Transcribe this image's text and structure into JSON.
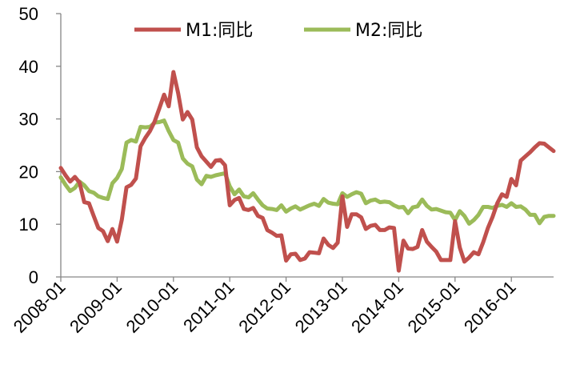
{
  "chart_data": {
    "type": "line",
    "title": "",
    "xlabel": "",
    "ylabel": "",
    "ylim": [
      0,
      50
    ],
    "yticks": [
      0,
      10,
      20,
      30,
      40,
      50
    ],
    "xticks": [
      "2008-01",
      "2009-01",
      "2010-01",
      "2011-01",
      "2012-01",
      "2013-01",
      "2014-01",
      "2015-01",
      "2016-01"
    ],
    "x_start": "2008-01",
    "x_end": "2016-10",
    "grid": false,
    "legend_position": "top",
    "series": [
      {
        "name": "M1:同比",
        "color": "#C0504D",
        "values": [
          20.7,
          19.3,
          18.1,
          19.0,
          17.9,
          14.2,
          14.0,
          11.6,
          9.3,
          8.7,
          6.8,
          9.1,
          6.7,
          10.9,
          17.0,
          17.5,
          18.7,
          24.8,
          26.4,
          27.7,
          29.5,
          32.0,
          34.6,
          32.4,
          38.9,
          34.9,
          29.9,
          31.3,
          29.9,
          24.6,
          22.9,
          21.9,
          20.9,
          22.1,
          22.2,
          21.2,
          13.6,
          14.6,
          15.0,
          12.9,
          12.7,
          13.1,
          11.6,
          11.2,
          8.9,
          8.4,
          7.8,
          7.9,
          3.1,
          4.3,
          4.4,
          3.2,
          3.5,
          4.7,
          4.6,
          4.5,
          7.3,
          6.1,
          5.5,
          6.5,
          15.3,
          9.5,
          11.9,
          11.9,
          11.3,
          9.1,
          9.7,
          9.9,
          8.9,
          8.9,
          9.4,
          9.3,
          1.2,
          6.9,
          5.4,
          5.3,
          5.7,
          8.9,
          6.7,
          5.7,
          4.8,
          3.2,
          3.2,
          3.2,
          10.6,
          5.6,
          2.9,
          3.7,
          4.7,
          4.3,
          6.6,
          9.3,
          11.4,
          14.0,
          15.7,
          15.2,
          18.6,
          17.4,
          22.1,
          22.9,
          23.7,
          24.6,
          25.4,
          25.3,
          24.6,
          23.9
        ]
      },
      {
        "name": "M2:同比",
        "color": "#9BBB59",
        "values": [
          18.9,
          17.5,
          16.3,
          16.9,
          18.1,
          17.4,
          16.3,
          16.0,
          15.3,
          15.0,
          14.8,
          17.8,
          18.8,
          20.5,
          25.5,
          26.0,
          25.7,
          28.5,
          28.4,
          28.5,
          29.3,
          29.4,
          29.7,
          27.7,
          26.0,
          25.5,
          22.5,
          21.5,
          21.0,
          18.5,
          17.6,
          19.2,
          19.0,
          19.3,
          19.5,
          19.7,
          17.2,
          15.7,
          16.6,
          15.3,
          15.1,
          15.9,
          14.7,
          13.6,
          13.0,
          12.9,
          12.7,
          13.6,
          12.4,
          13.0,
          13.4,
          12.8,
          13.2,
          13.6,
          13.9,
          13.5,
          14.8,
          14.1,
          13.9,
          13.8,
          15.9,
          15.2,
          15.7,
          16.1,
          15.8,
          14.0,
          14.5,
          14.7,
          14.2,
          14.3,
          14.2,
          13.6,
          13.2,
          13.3,
          12.1,
          13.2,
          13.4,
          14.7,
          13.5,
          12.8,
          12.9,
          12.6,
          12.3,
          12.2,
          10.8,
          12.5,
          11.6,
          10.1,
          10.8,
          11.8,
          13.3,
          13.3,
          13.1,
          13.5,
          13.7,
          13.3,
          14.0,
          13.3,
          13.4,
          12.8,
          11.8,
          11.8,
          10.2,
          11.4,
          11.6,
          11.6
        ]
      }
    ]
  }
}
